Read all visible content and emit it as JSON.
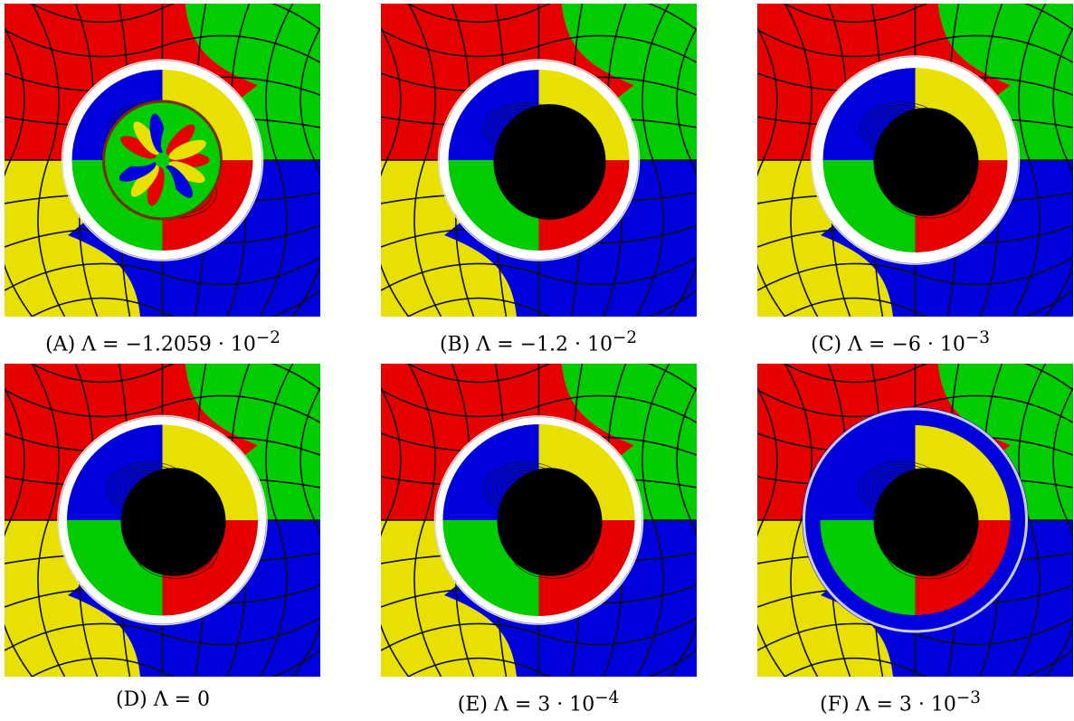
{
  "figure": {
    "panels": [
      {
        "id": "a",
        "caption_label": "(A)",
        "caption_eq": "Λ = −1.2059 · 10",
        "exp": "−2",
        "shadow": "chaotic",
        "ring": "thin-white",
        "quad_tl": "#0000dd",
        "quad_tr": "#e8e000",
        "quad_bl": "#00cc00",
        "quad_br": "#e60000"
      },
      {
        "id": "b",
        "caption_label": "(B)",
        "caption_eq": "Λ = −1.2 · 10",
        "exp": "−2",
        "shadow": "black",
        "ring": "thin-white",
        "quad_tl": "#0000dd",
        "quad_tr": "#e8e000",
        "quad_bl": "#00cc00",
        "quad_br": "#e60000"
      },
      {
        "id": "c",
        "caption_label": "(C)",
        "caption_eq": "Λ = −6 · 10",
        "exp": "−3",
        "shadow": "black",
        "ring": "thin-white",
        "quad_tl": "#0000dd",
        "quad_tr": "#e8e000",
        "quad_bl": "#00cc00",
        "quad_br": "#e60000"
      },
      {
        "id": "d",
        "caption_label": "(D)",
        "caption_eq": "Λ = 0",
        "exp": "",
        "shadow": "black",
        "ring": "thin-white",
        "quad_tl": "#0000dd",
        "quad_tr": "#e8e000",
        "quad_bl": "#00cc00",
        "quad_br": "#e60000"
      },
      {
        "id": "e",
        "caption_label": "(E)",
        "caption_eq": "Λ = 3 · 10",
        "exp": "−4",
        "shadow": "black",
        "ring": "thin-white",
        "quad_tl": "#0000dd",
        "quad_tr": "#e8e000",
        "quad_bl": "#00cc00",
        "quad_br": "#e60000"
      },
      {
        "id": "f",
        "caption_label": "(F)",
        "caption_eq": "Λ = 3 · 10",
        "exp": "−3",
        "shadow": "black",
        "ring": "blue-green",
        "quad_tl": "#0000dd",
        "quad_tr": "#e8e000",
        "quad_bl": "#00cc00",
        "quad_br": "#e60000"
      }
    ],
    "colors": {
      "red": "#e60000",
      "green": "#00cc00",
      "yellow": "#e8e000",
      "blue": "#0000dd",
      "shadow": "#000000",
      "ring": "#ffffff"
    }
  }
}
